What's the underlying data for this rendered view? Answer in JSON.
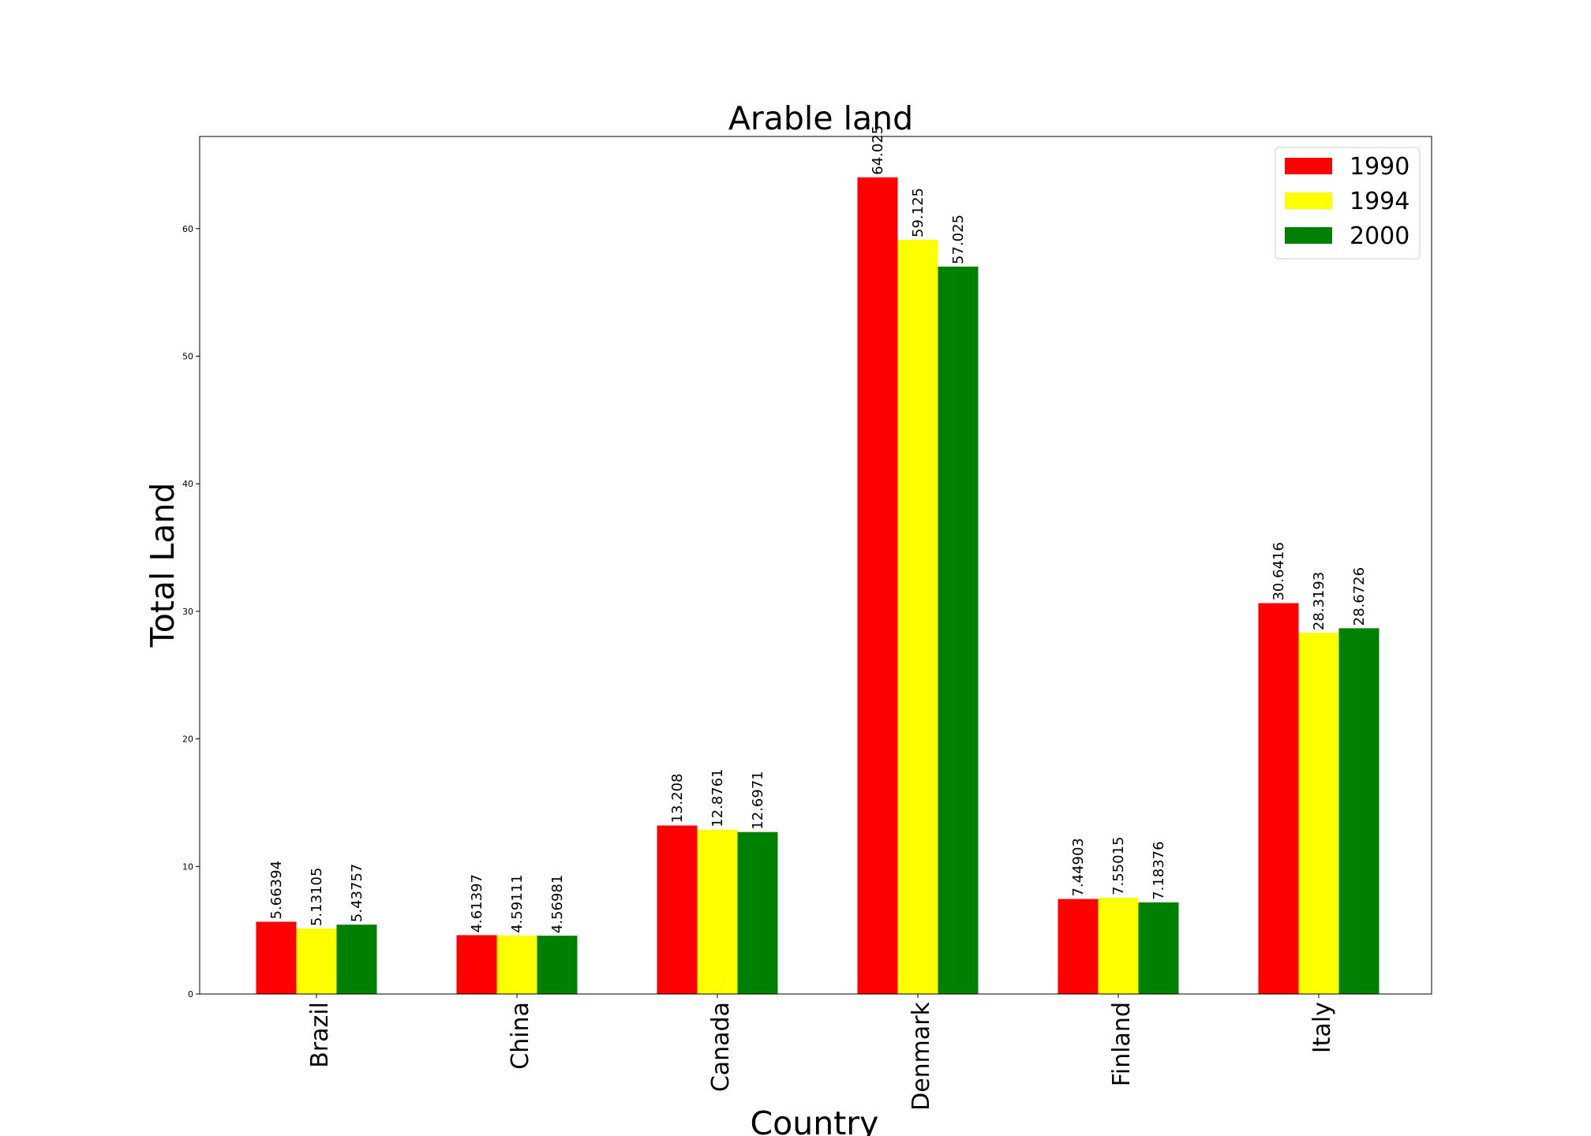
{
  "chart_data": {
    "type": "bar",
    "title": "Arable land",
    "xlabel": "Country",
    "ylabel": "Total Land",
    "categories": [
      "Brazil",
      "China",
      "Canada",
      "Denmark",
      "Finland",
      "Italy"
    ],
    "series": [
      {
        "name": "1990",
        "color": "#ff0000",
        "values": [
          5.66394,
          4.61397,
          13.208,
          64.025,
          7.44903,
          30.6416
        ],
        "labels": [
          "5.66394",
          "4.61397",
          "13.208",
          "64.025",
          "7.44903",
          "30.6416"
        ]
      },
      {
        "name": "1994",
        "color": "#ffff00",
        "values": [
          5.13105,
          4.59111,
          12.8761,
          59.125,
          7.55015,
          28.3193
        ],
        "labels": [
          "5.13105",
          "4.59111",
          "12.8761",
          "59.125",
          "7.55015",
          "28.3193"
        ]
      },
      {
        "name": "2000",
        "color": "#008000",
        "values": [
          5.43757,
          4.56981,
          12.6971,
          57.025,
          7.18376,
          28.6726
        ],
        "labels": [
          "5.43757",
          "4.56981",
          "12.6971",
          "57.025",
          "7.18376",
          "28.6726"
        ]
      }
    ],
    "yticks": [
      0,
      10,
      20,
      30,
      40,
      50,
      60
    ],
    "ytick_labels": [
      "0",
      "10",
      "20",
      "30",
      "40",
      "50",
      "60"
    ],
    "ylim": [
      0,
      67.226
    ],
    "grid": false,
    "legend_position": "top-right"
  }
}
